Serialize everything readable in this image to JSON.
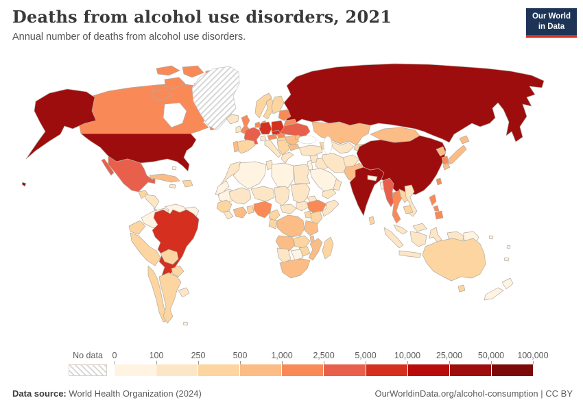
{
  "header": {
    "title": "Deaths from alcohol use disorders, 2021",
    "subtitle": "Annual number of deaths from alcohol use disorders."
  },
  "logo": {
    "line1": "Our World",
    "line2": "in Data",
    "bg_color": "#1d3456",
    "accent_color": "#dc2e1c"
  },
  "legend": {
    "no_data_label": "No data",
    "tick_labels": [
      "0",
      "100",
      "250",
      "500",
      "1,000",
      "2,500",
      "5,000",
      "10,000",
      "25,000",
      "50,000",
      "100,000"
    ],
    "bin_colors": [
      "#fff3e2",
      "#fde6c6",
      "#fcd5a0",
      "#fbbc85",
      "#f98a58",
      "#e8604c",
      "#d42f1f",
      "#b80b0b",
      "#9e0d0d",
      "#7c0a08"
    ]
  },
  "footer": {
    "source_label": "Data source:",
    "source_value": " World Health Organization (2024)",
    "right_text": "OurWorldinData.org/alcohol-consumption | CC BY"
  },
  "chart_data": {
    "type": "choropleth_map",
    "title": "Deaths from alcohol use disorders, 2021",
    "unit": "annual deaths",
    "year": "2021",
    "legend_bin_edges": [
      0,
      100,
      250,
      500,
      1000,
      2500,
      5000,
      10000,
      25000,
      50000,
      100000
    ],
    "no_data_style": "hatched",
    "border_color": "#b3aba1",
    "countries": {
      "russia": 9,
      "canada": 5,
      "alaska-usa": 9,
      "greenland": "no-data",
      "iceland": 2,
      "united-states": 9,
      "hawaii-usa": 9,
      "mexico": 6,
      "guatemala": 3,
      "honduras-nicaragua": 2,
      "costa-rica-panama": 2,
      "cuba": 4,
      "hispaniola": 3,
      "jamaica": 2,
      "bahamas": 1,
      "colombia": 1,
      "venezuela": 1,
      "guyanas": 1,
      "ecuador": 3,
      "peru": 3,
      "brazil": 7,
      "bolivia": 3,
      "paraguay": 3,
      "chile": 3,
      "argentina": 3,
      "uruguay": 2,
      "falkland-islands": 1,
      "united-kingdom": 5,
      "ireland": 2,
      "norway": 3,
      "sweden": 3,
      "finland": 3,
      "denmark": 5,
      "baltic-states": 5,
      "belarus": 5,
      "poland": 7,
      "germany": 7,
      "netherlands-belgium": 5,
      "france": 6,
      "switzerland": 2,
      "austria": 5,
      "czechia": 7,
      "slovakia": 5,
      "hungary": 3,
      "spain": 3,
      "portugal": 4,
      "italy": 2,
      "balkans": 3,
      "romania": 4,
      "bulgaria": 4,
      "greece": 2,
      "ukraine": 6,
      "moldova": 4,
      "turkey": 2,
      "caucasus": 3,
      "syria": 2,
      "israel-jordan": 1,
      "iraq": 2,
      "saudi-arabia": 1,
      "yemen": 2,
      "oman": 2,
      "iran": 2,
      "afghanistan": 2,
      "pakistan": 4,
      "india": 9,
      "nepal": 1,
      "bangladesh": 1,
      "sri-lanka": 3,
      "kazakhstan": 4,
      "uzbekistan-turkmenistan": 2,
      "kyrgyzstan-tajikistan": 3,
      "mongolia": 4,
      "china": 9,
      "north-korea": 4,
      "south-korea": 5,
      "japan": 4,
      "taiwan": 5,
      "myanmar": 6,
      "thailand": 5,
      "laos": 3,
      "vietnam": 2,
      "cambodia": 3,
      "malaysia": 2,
      "indonesia": 2,
      "papua-new-guinea": 1,
      "philippines": 5,
      "australia": 3,
      "new-zealand": 1,
      "pacific-islands": 1,
      "morocco": 2,
      "western-sahara": 1,
      "algeria": 1,
      "tunisia": 2,
      "libya": 1,
      "egypt": 2,
      "mauritania": 1,
      "mali": 2,
      "niger": 2,
      "chad": 2,
      "sudan": 2,
      "eritrea-djibouti": 2,
      "senegal-guinea": 3,
      "sierra-leone-liberia": 2,
      "ivory-coast-ghana": 4,
      "benin-togo": 3,
      "nigeria": 5,
      "cameroon": 3,
      "central-african-republic": 2,
      "south-sudan": 2,
      "ethiopia": 5,
      "somalia": 2,
      "kenya": 3,
      "uganda": 3,
      "drc": 4,
      "gabon-congo": 3,
      "tanzania": 4,
      "angola": 4,
      "zambia": 3,
      "malawi": 4,
      "mozambique": 4,
      "zimbabwe": 3,
      "botswana": 1,
      "namibia": 2,
      "south-africa": 4,
      "madagascar": 3
    }
  }
}
